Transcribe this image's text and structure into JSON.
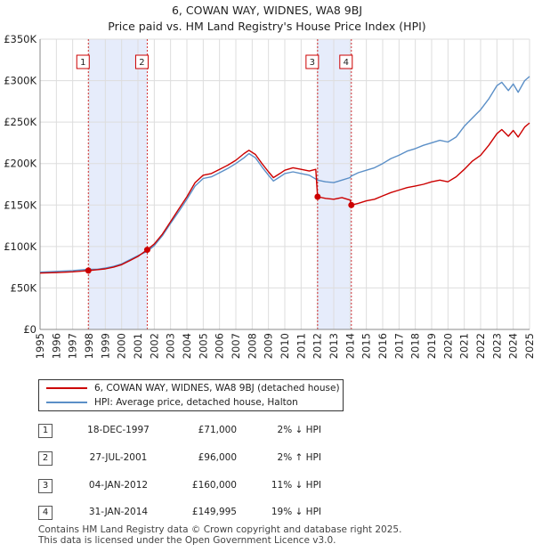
{
  "title_line1": "6, COWAN WAY, WIDNES, WA8 9BJ",
  "title_line2": "Price paid vs. HM Land Registry's House Price Index (HPI)",
  "colors": {
    "property": "#cc0000",
    "hpi": "#5b8fc7",
    "shade": "#e6ecfb",
    "marker": "#cc0000"
  },
  "chart_data": {
    "type": "line",
    "xlim": [
      1995,
      2025
    ],
    "ylim": [
      0,
      350000
    ],
    "x_ticks": [
      "1995",
      "1996",
      "1997",
      "1998",
      "1999",
      "2000",
      "2001",
      "2002",
      "2003",
      "2004",
      "2005",
      "2006",
      "2007",
      "2008",
      "2009",
      "2010",
      "2011",
      "2012",
      "2013",
      "2014",
      "2015",
      "2016",
      "2017",
      "2018",
      "2019",
      "2020",
      "2021",
      "2022",
      "2023",
      "2024",
      "2025"
    ],
    "y_ticks": [
      {
        "value": 0,
        "label": "£0"
      },
      {
        "value": 50000,
        "label": "£50K"
      },
      {
        "value": 100000,
        "label": "£100K"
      },
      {
        "value": 150000,
        "label": "£150K"
      },
      {
        "value": 200000,
        "label": "£200K"
      },
      {
        "value": 250000,
        "label": "£250K"
      },
      {
        "value": 300000,
        "label": "£300K"
      },
      {
        "value": 350000,
        "label": "£350K"
      }
    ],
    "grid": true,
    "shaded_ranges": [
      [
        1997.96,
        2001.57
      ],
      [
        2012.01,
        2014.08
      ]
    ],
    "series": [
      {
        "name": "6, COWAN WAY, WIDNES, WA8 9BJ (detached house)",
        "color": "#cc0000",
        "points": [
          [
            1995.0,
            68000
          ],
          [
            1996.0,
            68500
          ],
          [
            1997.0,
            69500
          ],
          [
            1997.96,
            71000
          ],
          [
            1998.5,
            72000
          ],
          [
            1999.0,
            73000
          ],
          [
            1999.5,
            75000
          ],
          [
            2000.0,
            78000
          ],
          [
            2000.5,
            83000
          ],
          [
            2001.0,
            88000
          ],
          [
            2001.57,
            96000
          ],
          [
            2002.0,
            103000
          ],
          [
            2002.5,
            115000
          ],
          [
            2003.0,
            130000
          ],
          [
            2003.5,
            145000
          ],
          [
            2004.0,
            160000
          ],
          [
            2004.5,
            177000
          ],
          [
            2005.0,
            186000
          ],
          [
            2005.5,
            188000
          ],
          [
            2006.0,
            193000
          ],
          [
            2006.5,
            198000
          ],
          [
            2007.0,
            204000
          ],
          [
            2007.5,
            212000
          ],
          [
            2007.8,
            216000
          ],
          [
            2008.2,
            211000
          ],
          [
            2008.6,
            200000
          ],
          [
            2009.0,
            190000
          ],
          [
            2009.3,
            183000
          ],
          [
            2009.7,
            188000
          ],
          [
            2010.0,
            192000
          ],
          [
            2010.5,
            195000
          ],
          [
            2011.0,
            193000
          ],
          [
            2011.5,
            191000
          ],
          [
            2011.9,
            193000
          ],
          [
            2012.01,
            160000
          ],
          [
            2012.5,
            158000
          ],
          [
            2013.0,
            157000
          ],
          [
            2013.5,
            159000
          ],
          [
            2014.0,
            156000
          ],
          [
            2014.08,
            149995
          ],
          [
            2014.5,
            152000
          ],
          [
            2015.0,
            155000
          ],
          [
            2015.5,
            157000
          ],
          [
            2016.0,
            161000
          ],
          [
            2016.5,
            165000
          ],
          [
            2017.0,
            168000
          ],
          [
            2017.5,
            171000
          ],
          [
            2018.0,
            173000
          ],
          [
            2018.5,
            175000
          ],
          [
            2019.0,
            178000
          ],
          [
            2019.5,
            180000
          ],
          [
            2020.0,
            178000
          ],
          [
            2020.5,
            184000
          ],
          [
            2021.0,
            193000
          ],
          [
            2021.5,
            203000
          ],
          [
            2022.0,
            210000
          ],
          [
            2022.5,
            222000
          ],
          [
            2023.0,
            236000
          ],
          [
            2023.3,
            241000
          ],
          [
            2023.7,
            233000
          ],
          [
            2024.0,
            240000
          ],
          [
            2024.3,
            232000
          ],
          [
            2024.7,
            244000
          ],
          [
            2025.0,
            249000
          ]
        ]
      },
      {
        "name": "HPI: Average price, detached house, Halton",
        "color": "#5b8fc7",
        "points": [
          [
            1995.0,
            69000
          ],
          [
            1996.0,
            70000
          ],
          [
            1997.0,
            71000
          ],
          [
            1997.96,
            72500
          ],
          [
            1998.5,
            72500
          ],
          [
            1999.0,
            74000
          ],
          [
            1999.5,
            76000
          ],
          [
            2000.0,
            79000
          ],
          [
            2000.5,
            84000
          ],
          [
            2001.0,
            89000
          ],
          [
            2001.57,
            94000
          ],
          [
            2002.0,
            101000
          ],
          [
            2002.5,
            113000
          ],
          [
            2003.0,
            128000
          ],
          [
            2003.5,
            142000
          ],
          [
            2004.0,
            157000
          ],
          [
            2004.5,
            173000
          ],
          [
            2005.0,
            182000
          ],
          [
            2005.5,
            184000
          ],
          [
            2006.0,
            189000
          ],
          [
            2006.5,
            194000
          ],
          [
            2007.0,
            200000
          ],
          [
            2007.5,
            207000
          ],
          [
            2007.8,
            212000
          ],
          [
            2008.2,
            207000
          ],
          [
            2008.6,
            196000
          ],
          [
            2009.0,
            186000
          ],
          [
            2009.3,
            179000
          ],
          [
            2009.7,
            184000
          ],
          [
            2010.0,
            188000
          ],
          [
            2010.5,
            190000
          ],
          [
            2011.0,
            188000
          ],
          [
            2011.5,
            186000
          ],
          [
            2012.01,
            180000
          ],
          [
            2012.5,
            178000
          ],
          [
            2013.0,
            177000
          ],
          [
            2013.5,
            180000
          ],
          [
            2014.0,
            183000
          ],
          [
            2014.08,
            185000
          ],
          [
            2014.5,
            189000
          ],
          [
            2015.0,
            192000
          ],
          [
            2015.5,
            195000
          ],
          [
            2016.0,
            200000
          ],
          [
            2016.5,
            206000
          ],
          [
            2017.0,
            210000
          ],
          [
            2017.5,
            215000
          ],
          [
            2018.0,
            218000
          ],
          [
            2018.5,
            222000
          ],
          [
            2019.0,
            225000
          ],
          [
            2019.5,
            228000
          ],
          [
            2020.0,
            226000
          ],
          [
            2020.5,
            232000
          ],
          [
            2021.0,
            245000
          ],
          [
            2021.5,
            255000
          ],
          [
            2022.0,
            265000
          ],
          [
            2022.5,
            278000
          ],
          [
            2023.0,
            294000
          ],
          [
            2023.3,
            298000
          ],
          [
            2023.7,
            288000
          ],
          [
            2024.0,
            296000
          ],
          [
            2024.3,
            286000
          ],
          [
            2024.7,
            300000
          ],
          [
            2025.0,
            305000
          ]
        ]
      }
    ],
    "sales": [
      {
        "n": "1",
        "x": 1997.96,
        "price": 71000
      },
      {
        "n": "2",
        "x": 2001.57,
        "price": 96000
      },
      {
        "n": "3",
        "x": 2012.01,
        "price": 160000
      },
      {
        "n": "4",
        "x": 2014.08,
        "price": 149995
      }
    ]
  },
  "legend": {
    "property_label": "6, COWAN WAY, WIDNES, WA8 9BJ (detached house)",
    "hpi_label": "HPI: Average price, detached house, Halton"
  },
  "transactions": [
    {
      "n": "1",
      "date": "18-DEC-1997",
      "price": "£71,000",
      "hpi": "2% ↓ HPI"
    },
    {
      "n": "2",
      "date": "27-JUL-2001",
      "price": "£96,000",
      "hpi": "2% ↑ HPI"
    },
    {
      "n": "3",
      "date": "04-JAN-2012",
      "price": "£160,000",
      "hpi": "11% ↓ HPI"
    },
    {
      "n": "4",
      "date": "31-JAN-2014",
      "price": "£149,995",
      "hpi": "19% ↓ HPI"
    }
  ],
  "footer": {
    "line1": "Contains HM Land Registry data © Crown copyright and database right 2025.",
    "line2": "This data is licensed under the Open Government Licence v3.0."
  }
}
